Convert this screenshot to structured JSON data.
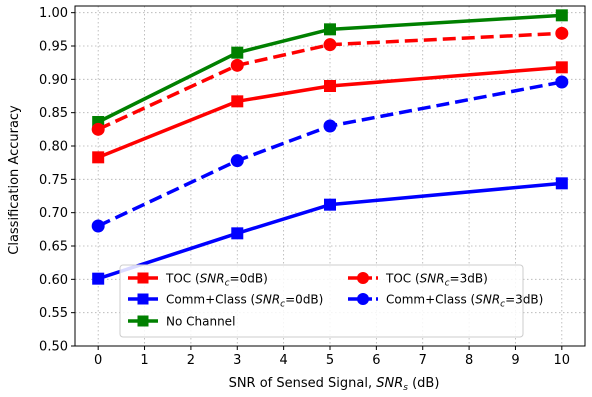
{
  "chart_data": {
    "type": "line",
    "xlabel": {
      "prefix": "SNR of Sensed Signal, ",
      "var": "SNR",
      "sub": "s",
      "suffix": " (dB)"
    },
    "ylabel": "Classification Accuracy",
    "xlim": [
      -0.5,
      10.5
    ],
    "ylim": [
      0.5,
      1.01
    ],
    "xticks": [
      0,
      1,
      2,
      3,
      4,
      5,
      6,
      7,
      8,
      9,
      10
    ],
    "yticks": [
      0.5,
      0.55,
      0.6,
      0.65,
      0.7,
      0.75,
      0.8,
      0.85,
      0.9,
      0.95,
      1.0
    ],
    "grid": true,
    "legend_position": "lower-right",
    "x": [
      0,
      3,
      5,
      10
    ],
    "series": [
      {
        "key": "toc0",
        "label_prefix": "TOC (",
        "label_var": "SNR",
        "label_sub": "c",
        "label_suffix": "=0dB)",
        "values": [
          0.783,
          0.867,
          0.89,
          0.918
        ],
        "color": "#ff0000",
        "dash": "solid",
        "marker": "square"
      },
      {
        "key": "comm0",
        "label_prefix": "Comm+Class (",
        "label_var": "SNR",
        "label_sub": "c",
        "label_suffix": "=0dB)",
        "values": [
          0.601,
          0.669,
          0.712,
          0.744
        ],
        "color": "#0000ff",
        "dash": "solid",
        "marker": "square"
      },
      {
        "key": "nochan",
        "label_prefix": "No Channel",
        "label_var": "",
        "label_sub": "",
        "label_suffix": "",
        "values": [
          0.836,
          0.94,
          0.975,
          0.996
        ],
        "color": "#008000",
        "dash": "solid",
        "marker": "square"
      },
      {
        "key": "toc3",
        "label_prefix": "TOC (",
        "label_var": "SNR",
        "label_sub": "c",
        "label_suffix": "=3dB)",
        "values": [
          0.825,
          0.921,
          0.952,
          0.969
        ],
        "color": "#ff0000",
        "dash": "dashed",
        "marker": "circle"
      },
      {
        "key": "comm3",
        "label_prefix": "Comm+Class (",
        "label_var": "SNR",
        "label_sub": "c",
        "label_suffix": "=3dB)",
        "values": [
          0.68,
          0.778,
          0.83,
          0.896
        ],
        "color": "#0000ff",
        "dash": "dashed",
        "marker": "circle"
      }
    ]
  }
}
